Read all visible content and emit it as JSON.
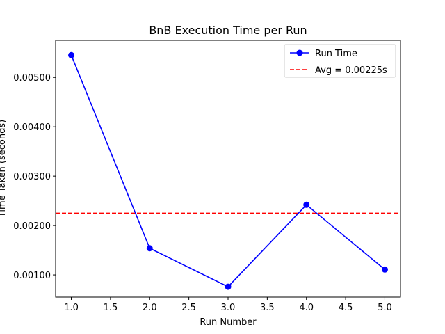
{
  "chart_data": {
    "type": "line",
    "title": "BnB Execution Time per Run",
    "xlabel": "Run Number",
    "ylabel": "Time Taken (seconds)",
    "x": [
      1,
      2,
      3,
      4,
      5
    ],
    "series": [
      {
        "name": "Run Time",
        "values": [
          0.00545,
          0.00154,
          0.00076,
          0.00242,
          0.00111
        ],
        "color": "#0000ff",
        "marker": "circle",
        "line_style": "solid"
      }
    ],
    "reference_lines": [
      {
        "name": "Avg = 0.00225s",
        "orientation": "horizontal",
        "value": 0.00225,
        "color": "#ff0000",
        "line_style": "dashed"
      }
    ],
    "xlim": [
      0.8,
      5.2
    ],
    "ylim": [
      0.00055,
      0.00575
    ],
    "x_ticks": [
      1.0,
      1.5,
      2.0,
      2.5,
      3.0,
      3.5,
      4.0,
      4.5,
      5.0
    ],
    "x_tick_labels": [
      "1.0",
      "1.5",
      "2.0",
      "2.5",
      "3.0",
      "3.5",
      "4.0",
      "4.5",
      "5.0"
    ],
    "y_ticks": [
      0.001,
      0.002,
      0.003,
      0.004,
      0.005
    ],
    "y_tick_labels": [
      "0.00100",
      "0.00200",
      "0.00300",
      "0.00400",
      "0.00500"
    ],
    "grid": false,
    "legend_position": "top-right"
  }
}
